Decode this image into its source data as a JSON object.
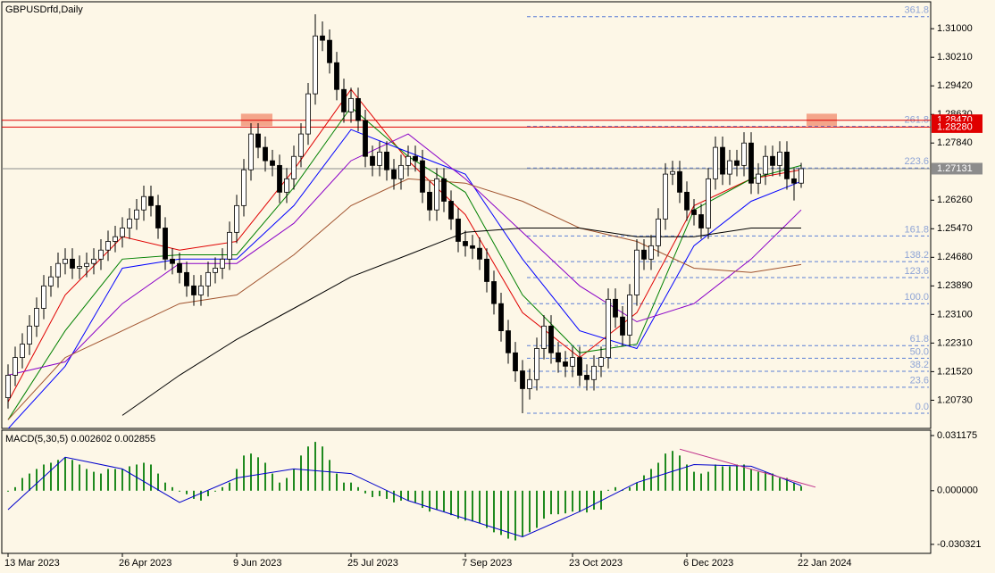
{
  "chart_data": [
    {
      "type": "candlestick",
      "title": "GBPUSDrfd,Daily",
      "bull_color": "#ffffff",
      "bear_color": "#000000",
      "xlim": [
        -1,
        129
      ],
      "ylim": [
        1.2,
        1.3167
      ],
      "yticks": [
        {
          "value": 1.31,
          "label": "1.31000"
        },
        {
          "value": 1.3021,
          "label": "1.30210"
        },
        {
          "value": 1.2942,
          "label": "1.29420"
        },
        {
          "value": 1.2863,
          "label": "1.28630"
        },
        {
          "value": 1.2784,
          "label": "1.27840"
        },
        {
          "value": 1.2626,
          "label": "1.26260"
        },
        {
          "value": 1.2547,
          "label": "1.25470"
        },
        {
          "value": 1.2468,
          "label": "1.24680"
        },
        {
          "value": 1.2389,
          "label": "1.23890"
        },
        {
          "value": 1.231,
          "label": "1.23100"
        },
        {
          "value": 1.2231,
          "label": "1.22310"
        },
        {
          "value": 1.2152,
          "label": "1.21520"
        },
        {
          "value": 1.2073,
          "label": "1.20730"
        }
      ],
      "candles": [
        [
          1.208,
          1.2172,
          1.205,
          1.2142
        ],
        [
          1.2142,
          1.2221,
          1.2112,
          1.2191
        ],
        [
          1.2191,
          1.2258,
          1.2161,
          1.2228
        ],
        [
          1.2228,
          1.2308,
          1.2198,
          1.2278
        ],
        [
          1.2278,
          1.2357,
          1.2248,
          1.2327
        ],
        [
          1.2327,
          1.2419,
          1.2297,
          1.2389
        ],
        [
          1.2389,
          1.2444,
          1.2359,
          1.2414
        ],
        [
          1.2414,
          1.2481,
          1.2384,
          1.2451
        ],
        [
          1.2451,
          1.2493,
          1.2421,
          1.2463
        ],
        [
          1.2463,
          1.2493,
          1.2408,
          1.2438
        ],
        [
          1.2438,
          1.2473,
          1.2408,
          1.2443
        ],
        [
          1.2443,
          1.2481,
          1.2413,
          1.2451
        ],
        [
          1.2451,
          1.2493,
          1.2421,
          1.2463
        ],
        [
          1.2463,
          1.2518,
          1.2433,
          1.2488
        ],
        [
          1.2488,
          1.2542,
          1.2458,
          1.2512
        ],
        [
          1.2512,
          1.2555,
          1.2482,
          1.2525
        ],
        [
          1.2525,
          1.2579,
          1.2495,
          1.2549
        ],
        [
          1.2549,
          1.2604,
          1.2519,
          1.2574
        ],
        [
          1.2574,
          1.2629,
          1.2544,
          1.2599
        ],
        [
          1.2599,
          1.2666,
          1.2569,
          1.2636
        ],
        [
          1.2636,
          1.2666,
          1.2581,
          1.2611
        ],
        [
          1.2611,
          1.2641,
          1.2519,
          1.2549
        ],
        [
          1.2549,
          1.2579,
          1.2433,
          1.2463
        ],
        [
          1.2463,
          1.2493,
          1.2421,
          1.2451
        ],
        [
          1.2451,
          1.2481,
          1.2396,
          1.2426
        ],
        [
          1.2426,
          1.2456,
          1.2359,
          1.2389
        ],
        [
          1.2389,
          1.2419,
          1.2334,
          1.2364
        ],
        [
          1.2364,
          1.2419,
          1.2334,
          1.2389
        ],
        [
          1.2389,
          1.2456,
          1.2359,
          1.2426
        ],
        [
          1.2426,
          1.2468,
          1.2396,
          1.2438
        ],
        [
          1.2438,
          1.2493,
          1.2408,
          1.2463
        ],
        [
          1.2463,
          1.2567,
          1.2433,
          1.2537
        ],
        [
          1.2537,
          1.2641,
          1.2507,
          1.2611
        ],
        [
          1.2611,
          1.274,
          1.2581,
          1.271
        ],
        [
          1.271,
          1.2839,
          1.268,
          1.2809
        ],
        [
          1.2809,
          1.2839,
          1.2742,
          1.2772
        ],
        [
          1.2772,
          1.2802,
          1.2705,
          1.2735
        ],
        [
          1.2735,
          1.2765,
          1.2692,
          1.2722
        ],
        [
          1.2722,
          1.2752,
          1.2618,
          1.2648
        ],
        [
          1.2648,
          1.2715,
          1.2618,
          1.2685
        ],
        [
          1.2685,
          1.2777,
          1.2655,
          1.2747
        ],
        [
          1.2747,
          1.2839,
          1.2717,
          1.2809
        ],
        [
          1.2809,
          1.295,
          1.2779,
          1.292
        ],
        [
          1.292,
          1.314,
          1.289,
          1.308
        ],
        [
          1.308,
          1.312,
          1.3038,
          1.3068
        ],
        [
          1.3068,
          1.3098,
          1.2976,
          1.3006
        ],
        [
          1.3006,
          1.3036,
          1.2902,
          1.2932
        ],
        [
          1.2932,
          1.2962,
          1.284,
          1.287
        ],
        [
          1.287,
          1.2937,
          1.284,
          1.2907
        ],
        [
          1.2907,
          1.2937,
          1.2816,
          1.2846
        ],
        [
          1.2846,
          1.2876,
          1.2717,
          1.2747
        ],
        [
          1.2747,
          1.2777,
          1.2692,
          1.2722
        ],
        [
          1.2722,
          1.2789,
          1.2692,
          1.2759
        ],
        [
          1.2759,
          1.2789,
          1.268,
          1.271
        ],
        [
          1.271,
          1.274,
          1.2655,
          1.2685
        ],
        [
          1.2685,
          1.2752,
          1.2655,
          1.2722
        ],
        [
          1.2722,
          1.2777,
          1.2692,
          1.2747
        ],
        [
          1.2747,
          1.2777,
          1.2705,
          1.2735
        ],
        [
          1.2735,
          1.2765,
          1.2618,
          1.2648
        ],
        [
          1.2648,
          1.2678,
          1.2569,
          1.2599
        ],
        [
          1.2599,
          1.2715,
          1.2569,
          1.2685
        ],
        [
          1.2685,
          1.2715,
          1.2593,
          1.2623
        ],
        [
          1.2623,
          1.2653,
          1.2544,
          1.2574
        ],
        [
          1.2574,
          1.2604,
          1.2482,
          1.2512
        ],
        [
          1.2512,
          1.2542,
          1.247,
          1.25
        ],
        [
          1.25,
          1.253,
          1.2463,
          1.2493
        ],
        [
          1.2493,
          1.2523,
          1.2433,
          1.2463
        ],
        [
          1.2463,
          1.2493,
          1.2371,
          1.2401
        ],
        [
          1.2401,
          1.2431,
          1.231,
          1.234
        ],
        [
          1.234,
          1.237,
          1.2235,
          1.2265
        ],
        [
          1.2265,
          1.2295,
          1.2174,
          1.2204
        ],
        [
          1.2204,
          1.2234,
          1.2124,
          1.2154
        ],
        [
          1.2154,
          1.2184,
          1.2037,
          1.2105
        ],
        [
          1.2105,
          1.216,
          1.2075,
          1.213
        ],
        [
          1.213,
          1.2246,
          1.21,
          1.2216
        ],
        [
          1.2216,
          1.2308,
          1.2186,
          1.2278
        ],
        [
          1.2278,
          1.2308,
          1.2174,
          1.2204
        ],
        [
          1.2204,
          1.2234,
          1.2149,
          1.2179
        ],
        [
          1.2179,
          1.2209,
          1.2137,
          1.2167
        ],
        [
          1.2167,
          1.2221,
          1.2137,
          1.2191
        ],
        [
          1.2191,
          1.2221,
          1.2112,
          1.2142
        ],
        [
          1.2142,
          1.2172,
          1.21,
          1.213
        ],
        [
          1.213,
          1.2197,
          1.21,
          1.2167
        ],
        [
          1.2167,
          1.2221,
          1.2137,
          1.2191
        ],
        [
          1.2191,
          1.2382,
          1.2161,
          1.2352
        ],
        [
          1.2352,
          1.2382,
          1.2273,
          1.2303
        ],
        [
          1.2303,
          1.2333,
          1.2223,
          1.2253
        ],
        [
          1.2253,
          1.2394,
          1.2223,
          1.2364
        ],
        [
          1.2364,
          1.2518,
          1.2334,
          1.2488
        ],
        [
          1.2488,
          1.2518,
          1.2433,
          1.2463
        ],
        [
          1.2463,
          1.253,
          1.2433,
          1.25
        ],
        [
          1.25,
          1.2604,
          1.247,
          1.2574
        ],
        [
          1.2574,
          1.2728,
          1.2544,
          1.2698
        ],
        [
          1.2698,
          1.2735,
          1.2668,
          1.2705
        ],
        [
          1.2705,
          1.2735,
          1.2618,
          1.2648
        ],
        [
          1.2648,
          1.2678,
          1.2569,
          1.2599
        ],
        [
          1.2599,
          1.2629,
          1.2556,
          1.2586
        ],
        [
          1.2586,
          1.2616,
          1.2519,
          1.2549
        ],
        [
          1.2549,
          1.2715,
          1.2519,
          1.2685
        ],
        [
          1.2685,
          1.2802,
          1.2655,
          1.2772
        ],
        [
          1.2772,
          1.2802,
          1.2668,
          1.2698
        ],
        [
          1.2698,
          1.2765,
          1.2668,
          1.2735
        ],
        [
          1.2735,
          1.2765,
          1.2692,
          1.2722
        ],
        [
          1.2722,
          1.2814,
          1.2692,
          1.2784
        ],
        [
          1.2784,
          1.2814,
          1.2643,
          1.2673
        ],
        [
          1.2673,
          1.2728,
          1.2643,
          1.2698
        ],
        [
          1.2698,
          1.2777,
          1.2668,
          1.2747
        ],
        [
          1.2747,
          1.2777,
          1.2692,
          1.2722
        ],
        [
          1.2722,
          1.2789,
          1.2692,
          1.2759
        ],
        [
          1.2759,
          1.2789,
          1.2655,
          1.2685
        ],
        [
          1.2685,
          1.2715,
          1.2625,
          1.2673
        ],
        [
          1.2673,
          1.2729,
          1.266,
          1.2713
        ]
      ],
      "ma_x": [
        0,
        8,
        16,
        24,
        32,
        40,
        48,
        56,
        64,
        72,
        80,
        88,
        96,
        104,
        111
      ],
      "series": [
        {
          "color": "#e00000",
          "values": [
            1.2068,
            1.2364,
            1.2525,
            1.2488,
            1.2512,
            1.271,
            1.2932,
            1.2735,
            1.2586,
            1.2315,
            1.2191,
            1.2315,
            1.2611,
            1.2685,
            1.271
          ]
        },
        {
          "color": "#008000",
          "values": [
            1.2019,
            1.2265,
            1.2463,
            1.2475,
            1.2475,
            1.2661,
            1.2883,
            1.2747,
            1.2648,
            1.2364,
            1.2204,
            1.2228,
            1.2599,
            1.2685,
            1.2722
          ]
        },
        {
          "color": "#0000ff",
          "values": [
            1.1994,
            1.2167,
            1.2438,
            1.2463,
            1.2463,
            1.2611,
            1.2821,
            1.2759,
            1.2698,
            1.2463,
            1.2265,
            1.2216,
            1.25,
            1.2623,
            1.2678
          ]
        },
        {
          "color": "#8a00c8",
          "values": [
            1.2142,
            1.2179,
            1.234,
            1.2451,
            1.2451,
            1.2562,
            1.2735,
            1.2809,
            1.2685,
            1.2537,
            1.2389,
            1.229,
            1.234,
            1.2463,
            1.2599
          ]
        },
        {
          "color": "#a0522d",
          "values": [
            1.2019,
            1.2191,
            1.2265,
            1.234,
            1.2364,
            1.2475,
            1.2611,
            1.2685,
            1.2673,
            1.2623,
            1.2549,
            1.2512,
            1.2438,
            1.2426,
            1.2448
          ]
        },
        {
          "color": "#000000",
          "values": [
            null,
            null,
            1.2031,
            1.2142,
            1.2241,
            1.2327,
            1.2414,
            1.2475,
            1.2537,
            1.2549,
            1.2549,
            1.2525,
            1.2525,
            1.2549,
            1.2549
          ]
        }
      ],
      "fib_color": "#5b7fd6",
      "fib_levels": [
        {
          "value": 1.3133,
          "label": "361.8"
        },
        {
          "value": 1.283,
          "label": "261.8"
        },
        {
          "value": 1.2715,
          "label": "223.6"
        },
        {
          "value": 1.2527,
          "label": "161.8"
        },
        {
          "value": 1.2456,
          "label": "138.2"
        },
        {
          "value": 1.2412,
          "label": "123.6"
        },
        {
          "value": 1.234,
          "label": "100.0"
        },
        {
          "value": 1.2224,
          "label": "61.8"
        },
        {
          "value": 1.2189,
          "label": "50.0"
        },
        {
          "value": 1.2153,
          "label": "38.2"
        },
        {
          "value": 1.2109,
          "label": "23.6"
        },
        {
          "value": 1.2037,
          "label": "0.0"
        }
      ],
      "zone_color": "#f4a58a",
      "zones": [
        {
          "x": [
            32.6,
            37
          ],
          "y": [
            1.2831,
            1.2865
          ]
        },
        {
          "x": [
            111.75,
            116
          ],
          "y": [
            1.2831,
            1.2865
          ]
        }
      ],
      "level_color": "#e00000",
      "levels": [
        {
          "value": 1.2847,
          "label": "1.28470"
        },
        {
          "value": 1.2828,
          "label": "1.28280"
        }
      ],
      "current_color": "#8c8c8c",
      "current": {
        "value": 1.27131,
        "label": "1.27131"
      }
    },
    {
      "type": "macd",
      "title": "MACD(5,30,5) 0.002602 0.002855",
      "xlim": [
        -1,
        129
      ],
      "xticks": [
        {
          "value": 0,
          "label": "13 Mar 2023"
        },
        {
          "value": 16,
          "label": "26 Apr 2023"
        },
        {
          "value": 32,
          "label": "9 Jun 2023"
        },
        {
          "value": 48,
          "label": "25 Jul 2023"
        },
        {
          "value": 64,
          "label": "7 Sep 2023"
        },
        {
          "value": 79,
          "label": "23 Oct 2023"
        },
        {
          "value": 95,
          "label": "6 Dec 2023"
        },
        {
          "value": 111,
          "label": "22 Jan 2024"
        }
      ],
      "ylim": [
        -0.0344,
        0.0337
      ],
      "yticks": [
        0.031175,
        {
          "value": 0,
          "label": "0.000000"
        },
        -0.030321
      ],
      "histogram_color": "#1f8a1f",
      "histogram": [
        -0.0005,
        0.002,
        0.0072,
        0.0097,
        0.0123,
        0.0148,
        0.0158,
        0.0174,
        0.0189,
        0.0174,
        0.0148,
        0.0123,
        0.0107,
        0.0097,
        0.0123,
        0.0123,
        0.0123,
        0.0138,
        0.0148,
        0.0158,
        0.0148,
        0.0097,
        0.0046,
        0.002,
        -0.0005,
        -0.002,
        -0.0046,
        -0.0056,
        -0.0031,
        -0.0005,
        0.002,
        0.0046,
        0.0123,
        0.0199,
        0.021,
        0.0189,
        0.0158,
        0.0097,
        0.0046,
        0.0072,
        0.0123,
        0.0199,
        0.025,
        0.0276,
        0.025,
        0.0174,
        0.0097,
        0.0046,
        0.0046,
        0.002,
        -0.0015,
        -0.0036,
        -0.0031,
        -0.0046,
        -0.0066,
        -0.0056,
        -0.0056,
        -0.0066,
        -0.0097,
        -0.0118,
        -0.0107,
        -0.0118,
        -0.0138,
        -0.0158,
        -0.0169,
        -0.0174,
        -0.0184,
        -0.021,
        -0.0235,
        -0.025,
        -0.0271,
        -0.0281,
        -0.0261,
        -0.0235,
        -0.021,
        -0.0158,
        -0.0133,
        -0.0133,
        -0.0128,
        -0.0118,
        -0.0118,
        -0.0123,
        -0.0107,
        -0.0107,
        0.0005,
        0.002,
        0.0005,
        0.002,
        0.0046,
        0.0087,
        0.0123,
        0.0158,
        0.021,
        0.0225,
        0.0199,
        0.0148,
        0.0107,
        0.0097,
        0.0107,
        0.0148,
        0.0138,
        0.0138,
        0.0148,
        0.0148,
        0.0123,
        0.0107,
        0.0107,
        0.0097,
        0.0072,
        0.0072,
        0.0046,
        0.0026
      ],
      "signal": {
        "color": "#0000cc",
        "x": [
          0,
          8,
          16,
          24,
          32,
          40,
          48,
          56,
          64,
          72,
          80,
          88,
          96,
          104,
          111
        ],
        "values": [
          -0.0107,
          0.0189,
          0.0123,
          -0.0066,
          0.0072,
          0.0123,
          0.0097,
          -0.0056,
          -0.0158,
          -0.0261,
          -0.0118,
          0.0046,
          0.0148,
          0.0138,
          0.0029
        ]
      },
      "trendline": {
        "color": "#c0308a",
        "x": [
          94,
          113
        ],
        "values": [
          0.0235,
          0.002
        ]
      }
    }
  ]
}
